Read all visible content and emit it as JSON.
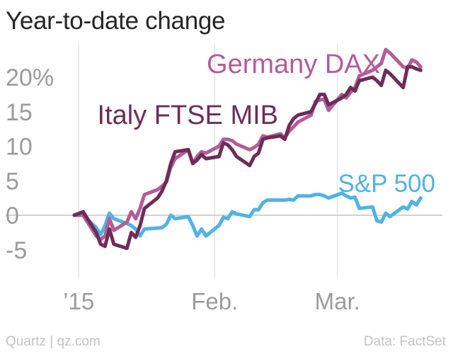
{
  "chart_data": {
    "type": "line",
    "title": "Year-to-date change",
    "xlabel": "",
    "ylabel": "",
    "ylim": [
      -7,
      24
    ],
    "yticks": [
      {
        "value": 20,
        "label": "20%"
      },
      {
        "value": 15,
        "label": "15"
      },
      {
        "value": 10,
        "label": "10"
      },
      {
        "value": 5,
        "label": "5"
      },
      {
        "value": 0,
        "label": "0"
      },
      {
        "value": -5,
        "label": "-5"
      }
    ],
    "xrange": [
      "2014-12-31",
      "2015-03-23"
    ],
    "xticks": [
      {
        "date": "2015-01-01",
        "label": "’15"
      },
      {
        "date": "2015-02-01",
        "label": "Feb."
      },
      {
        "date": "2015-03-01",
        "label": "Mar."
      }
    ],
    "grid": "vertical at x ticks, zero baseline",
    "legend": "inline labels",
    "series": [
      {
        "name": "Germany DAX",
        "color": "#b45d97",
        "points": [
          [
            "2014-12-31",
            0
          ],
          [
            "2015-01-02",
            0
          ],
          [
            "2015-01-05",
            -3
          ],
          [
            "2015-01-06",
            -3.5
          ],
          [
            "2015-01-07",
            -3
          ],
          [
            "2015-01-08",
            -0.5
          ],
          [
            "2015-01-09",
            -2.2
          ],
          [
            "2015-01-12",
            -1
          ],
          [
            "2015-01-13",
            0.5
          ],
          [
            "2015-01-14",
            -0.5
          ],
          [
            "2015-01-15",
            1
          ],
          [
            "2015-01-16",
            3
          ],
          [
            "2015-01-19",
            3.7
          ],
          [
            "2015-01-20",
            4.2
          ],
          [
            "2015-01-21",
            4.8
          ],
          [
            "2015-01-22",
            7
          ],
          [
            "2015-01-23",
            8.2
          ],
          [
            "2015-01-26",
            9.5
          ],
          [
            "2015-01-27",
            7.5
          ],
          [
            "2015-01-28",
            8.5
          ],
          [
            "2015-01-29",
            9.2
          ],
          [
            "2015-01-30",
            9
          ],
          [
            "2015-02-02",
            10
          ],
          [
            "2015-02-03",
            11
          ],
          [
            "2015-02-04",
            11
          ],
          [
            "2015-02-05",
            10.8
          ],
          [
            "2015-02-06",
            10.3
          ],
          [
            "2015-02-09",
            9.5
          ],
          [
            "2015-02-10",
            9.8
          ],
          [
            "2015-02-11",
            10.3
          ],
          [
            "2015-02-12",
            11.5
          ],
          [
            "2015-02-13",
            11.3
          ],
          [
            "2015-02-16",
            11.8
          ],
          [
            "2015-02-17",
            11.2
          ],
          [
            "2015-02-18",
            12.2
          ],
          [
            "2015-02-19",
            12.8
          ],
          [
            "2015-02-20",
            13.5
          ],
          [
            "2015-02-23",
            14.5
          ],
          [
            "2015-02-24",
            16.5
          ],
          [
            "2015-02-25",
            16.7
          ],
          [
            "2015-02-26",
            16.8
          ],
          [
            "2015-02-27",
            15.2
          ],
          [
            "2015-03-02",
            17.5
          ],
          [
            "2015-03-03",
            17
          ],
          [
            "2015-03-04",
            17.8
          ],
          [
            "2015-03-05",
            18.5
          ],
          [
            "2015-03-06",
            20.2
          ],
          [
            "2015-03-09",
            21
          ],
          [
            "2015-03-10",
            21.5
          ],
          [
            "2015-03-11",
            22
          ],
          [
            "2015-03-12",
            24
          ],
          [
            "2015-03-13",
            23.5
          ],
          [
            "2015-03-16",
            21.5
          ],
          [
            "2015-03-17",
            21.3
          ],
          [
            "2015-03-18",
            22.5
          ],
          [
            "2015-03-19",
            22.2
          ],
          [
            "2015-03-20",
            21.5
          ]
        ]
      },
      {
        "name": "Italy FTSE MIB",
        "color": "#6e2c58",
        "points": [
          [
            "2014-12-31",
            0
          ],
          [
            "2015-01-02",
            0.5
          ],
          [
            "2015-01-05",
            -2.5
          ],
          [
            "2015-01-06",
            -4.2
          ],
          [
            "2015-01-07",
            -4.5
          ],
          [
            "2015-01-08",
            -2
          ],
          [
            "2015-01-09",
            -4.2
          ],
          [
            "2015-01-12",
            -4.8
          ],
          [
            "2015-01-13",
            -2.5
          ],
          [
            "2015-01-14",
            -3.2
          ],
          [
            "2015-01-15",
            -1.5
          ],
          [
            "2015-01-16",
            1
          ],
          [
            "2015-01-19",
            2.5
          ],
          [
            "2015-01-20",
            3.5
          ],
          [
            "2015-01-21",
            5
          ],
          [
            "2015-01-22",
            7.5
          ],
          [
            "2015-01-23",
            9.2
          ],
          [
            "2015-01-26",
            9.5
          ],
          [
            "2015-01-27",
            7.5
          ],
          [
            "2015-01-28",
            8
          ],
          [
            "2015-01-29",
            8.8
          ],
          [
            "2015-01-30",
            8.2
          ],
          [
            "2015-02-02",
            8.5
          ],
          [
            "2015-02-03",
            10.5
          ],
          [
            "2015-02-04",
            10.2
          ],
          [
            "2015-02-05",
            9.5
          ],
          [
            "2015-02-06",
            8.5
          ],
          [
            "2015-02-09",
            7.2
          ],
          [
            "2015-02-10",
            8.5
          ],
          [
            "2015-02-11",
            9
          ],
          [
            "2015-02-12",
            11
          ],
          [
            "2015-02-13",
            11.2
          ],
          [
            "2015-02-16",
            11.5
          ],
          [
            "2015-02-17",
            11
          ],
          [
            "2015-02-18",
            13
          ],
          [
            "2015-02-19",
            14
          ],
          [
            "2015-02-20",
            14.5
          ],
          [
            "2015-02-23",
            15
          ],
          [
            "2015-02-24",
            16.2
          ],
          [
            "2015-02-25",
            17.5
          ],
          [
            "2015-02-26",
            17.5
          ],
          [
            "2015-02-27",
            16
          ],
          [
            "2015-03-02",
            17
          ],
          [
            "2015-03-03",
            17.5
          ],
          [
            "2015-03-04",
            18.5
          ],
          [
            "2015-03-05",
            18
          ],
          [
            "2015-03-06",
            19.5
          ],
          [
            "2015-03-09",
            20
          ],
          [
            "2015-03-10",
            19.5
          ],
          [
            "2015-03-11",
            18.8
          ],
          [
            "2015-03-12",
            21
          ],
          [
            "2015-03-13",
            20.5
          ],
          [
            "2015-03-16",
            18.5
          ],
          [
            "2015-03-17",
            21.5
          ],
          [
            "2015-03-18",
            21.5
          ],
          [
            "2015-03-19",
            21.2
          ],
          [
            "2015-03-20",
            21
          ]
        ]
      },
      {
        "name": "S&P 500",
        "color": "#51b2e5",
        "points": [
          [
            "2014-12-31",
            0
          ],
          [
            "2015-01-02",
            0
          ],
          [
            "2015-01-05",
            -1.8
          ],
          [
            "2015-01-06",
            -2.8
          ],
          [
            "2015-01-07",
            -1.5
          ],
          [
            "2015-01-08",
            0.3
          ],
          [
            "2015-01-09",
            -0.5
          ],
          [
            "2015-01-12",
            -1.2
          ],
          [
            "2015-01-13",
            -1.5
          ],
          [
            "2015-01-14",
            -2
          ],
          [
            "2015-01-15",
            -3
          ],
          [
            "2015-01-16",
            -2
          ],
          [
            "2015-01-20",
            -1.8
          ],
          [
            "2015-01-21",
            -1.3
          ],
          [
            "2015-01-22",
            0
          ],
          [
            "2015-01-23",
            -0.5
          ],
          [
            "2015-01-26",
            -0.2
          ],
          [
            "2015-01-27",
            -1.5
          ],
          [
            "2015-01-28",
            -3
          ],
          [
            "2015-01-29",
            -2
          ],
          [
            "2015-01-30",
            -3
          ],
          [
            "2015-02-02",
            -1.5
          ],
          [
            "2015-02-03",
            -0.3
          ],
          [
            "2015-02-04",
            -0.5
          ],
          [
            "2015-02-05",
            0.5
          ],
          [
            "2015-02-06",
            0.2
          ],
          [
            "2015-02-09",
            -0.2
          ],
          [
            "2015-02-10",
            0.8
          ],
          [
            "2015-02-11",
            0.8
          ],
          [
            "2015-02-12",
            1.8
          ],
          [
            "2015-02-13",
            2.2
          ],
          [
            "2015-02-17",
            2.2
          ],
          [
            "2015-02-18",
            2.3
          ],
          [
            "2015-02-19",
            2.2
          ],
          [
            "2015-02-20",
            2.8
          ],
          [
            "2015-02-23",
            2.8
          ],
          [
            "2015-02-24",
            3
          ],
          [
            "2015-02-25",
            3
          ],
          [
            "2015-02-26",
            2.8
          ],
          [
            "2015-02-27",
            2.5
          ],
          [
            "2015-03-02",
            3.2
          ],
          [
            "2015-03-03",
            2.8
          ],
          [
            "2015-03-04",
            2.5
          ],
          [
            "2015-03-05",
            2.6
          ],
          [
            "2015-03-06",
            1
          ],
          [
            "2015-03-09",
            1.2
          ],
          [
            "2015-03-10",
            -0.8
          ],
          [
            "2015-03-11",
            -1
          ],
          [
            "2015-03-12",
            0.3
          ],
          [
            "2015-03-13",
            -0.2
          ],
          [
            "2015-03-16",
            1.2
          ],
          [
            "2015-03-17",
            0.9
          ],
          [
            "2015-03-18",
            2
          ],
          [
            "2015-03-19",
            1.5
          ],
          [
            "2015-03-20",
            2.5
          ]
        ]
      }
    ]
  },
  "footer": {
    "credit_left": "Quartz | qz.com",
    "credit_right": "Data: FactSet"
  }
}
